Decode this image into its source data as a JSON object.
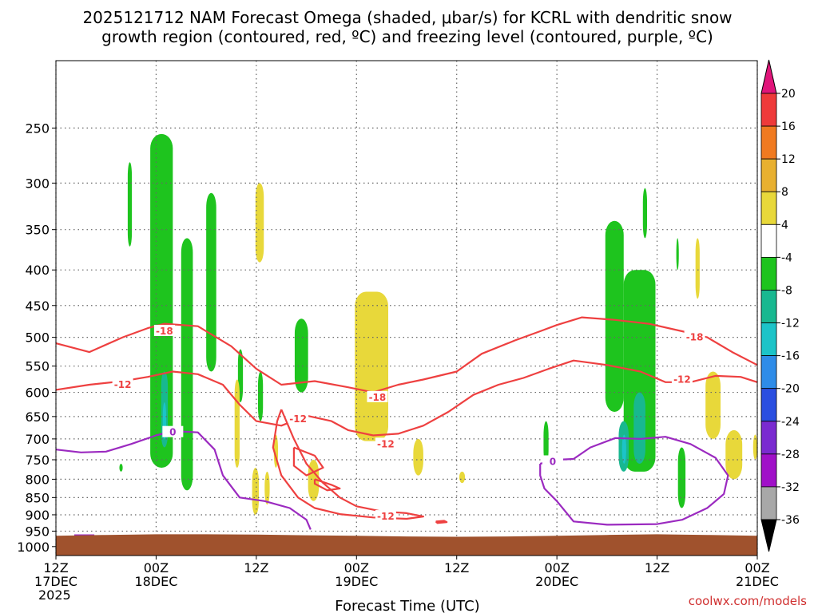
{
  "title_line1": "2025121712 NAM Forecast Omega (shaded, μbar/s) for KCRL with dendritic snow",
  "title_line2": "growth region (contoured, red, ºC) and freezing level (contoured, purple, ºC)",
  "credit": "coolwx.com/models",
  "chart_data": {
    "type": "heatmap",
    "title": "2025121712 NAM Forecast Omega (shaded, μbar/s) for KCRL with dendritic snow growth region (contoured, red, ºC) and freezing level (contoured, purple, ºC)",
    "xlabel": "Forecast Time (UTC)",
    "ylabel": "",
    "x_range_hours": [
      0,
      84
    ],
    "y_range_hPa": [
      200,
      1030
    ],
    "y_scale": "log",
    "grid": true,
    "y_ticks": [
      250,
      300,
      350,
      400,
      450,
      500,
      550,
      600,
      650,
      700,
      750,
      800,
      850,
      900,
      950,
      1000
    ],
    "x_ticks": [
      {
        "hour": 0,
        "lines": [
          "12Z",
          "17DEC",
          "2025"
        ]
      },
      {
        "hour": 12,
        "lines": [
          "00Z",
          "18DEC"
        ]
      },
      {
        "hour": 24,
        "lines": [
          "12Z"
        ]
      },
      {
        "hour": 36,
        "lines": [
          "00Z",
          "19DEC"
        ]
      },
      {
        "hour": 48,
        "lines": [
          "12Z"
        ]
      },
      {
        "hour": 60,
        "lines": [
          "00Z",
          "20DEC"
        ]
      },
      {
        "hour": 72,
        "lines": [
          "12Z"
        ]
      },
      {
        "hour": 84,
        "lines": [
          "00Z",
          "21DEC"
        ]
      }
    ],
    "colorbar": {
      "labels": [
        "20",
        "16",
        "12",
        "8",
        "4",
        "-4",
        "-8",
        "-12",
        "-16",
        "-20",
        "-24",
        "-28",
        "-32",
        "-36"
      ],
      "colors_top_to_bottom": [
        "#e0157a",
        "#ee3a3a",
        "#f07a20",
        "#e8b030",
        "#e8d83a",
        "#ffffff",
        "#1ec41e",
        "#18b890",
        "#1cc4c8",
        "#2e8ce8",
        "#2a4ee0",
        "#7a2ad0",
        "#a010c8",
        "#a8a8a8",
        "#000000"
      ]
    },
    "surface_color": "#a0522d",
    "omega_regions": [
      {
        "class": "-4to-8",
        "hours": [
          11.3,
          14.0
        ],
        "p": [
          255,
          770
        ],
        "color": "#1ec41e"
      },
      {
        "class": "-4to-8",
        "hours": [
          8.6,
          9.1
        ],
        "p": [
          280,
          370
        ],
        "color": "#1ec41e"
      },
      {
        "class": "-4to-8",
        "hours": [
          15.0,
          16.4
        ],
        "p": [
          360,
          830
        ],
        "color": "#1ec41e"
      },
      {
        "class": "-4to-8",
        "hours": [
          18.0,
          19.2
        ],
        "p": [
          310,
          560
        ],
        "color": "#1ec41e"
      },
      {
        "class": "-4to-8",
        "hours": [
          21.8,
          22.4
        ],
        "p": [
          520,
          620
        ],
        "color": "#1ec41e"
      },
      {
        "class": "-4to-8",
        "hours": [
          24.2,
          24.8
        ],
        "p": [
          560,
          660
        ],
        "color": "#1ec41e"
      },
      {
        "class": "-4to-8",
        "hours": [
          28.6,
          30.2
        ],
        "p": [
          470,
          600
        ],
        "color": "#1ec41e"
      },
      {
        "class": "-4to-8",
        "hours": [
          7.6,
          8.0
        ],
        "p": [
          760,
          780
        ],
        "color": "#1ec41e"
      },
      {
        "class": "-4to-8",
        "hours": [
          58.4,
          59.0
        ],
        "p": [
          660,
          760
        ],
        "color": "#1ec41e"
      },
      {
        "class": "-4to-8",
        "hours": [
          65.8,
          68.0
        ],
        "p": [
          340,
          640
        ],
        "color": "#1ec41e"
      },
      {
        "class": "-4to-8",
        "hours": [
          68.0,
          71.8
        ],
        "p": [
          400,
          780
        ],
        "color": "#1ec41e"
      },
      {
        "class": "-4to-8",
        "hours": [
          70.3,
          70.8
        ],
        "p": [
          305,
          360
        ],
        "color": "#1ec41e"
      },
      {
        "class": "-4to-8",
        "hours": [
          74.3,
          74.6
        ],
        "p": [
          360,
          400
        ],
        "color": "#1ec41e"
      },
      {
        "class": "-4to-8",
        "hours": [
          74.5,
          75.4
        ],
        "p": [
          720,
          880
        ],
        "color": "#1ec41e"
      },
      {
        "class": "-8to-12",
        "hours": [
          12.6,
          13.4
        ],
        "p": [
          560,
          720
        ],
        "color": "#18b890"
      },
      {
        "class": "-8to-12",
        "hours": [
          67.4,
          68.6
        ],
        "p": [
          660,
          780
        ],
        "color": "#18b890"
      },
      {
        "class": "-8to-12",
        "hours": [
          69.2,
          70.6
        ],
        "p": [
          600,
          760
        ],
        "color": "#18b890"
      },
      {
        "class": "-12to-16",
        "hours": [
          12.8,
          13.2
        ],
        "p": [
          620,
          700
        ],
        "color": "#1cc4c8"
      },
      {
        "class": "-12to-16",
        "hours": [
          67.8,
          68.3
        ],
        "p": [
          690,
          760
        ],
        "color": "#1cc4c8"
      },
      {
        "class": "4to8",
        "hours": [
          23.9,
          24.9
        ],
        "p": [
          300,
          390
        ],
        "color": "#e8d83a"
      },
      {
        "class": "4to8",
        "hours": [
          21.4,
          22.0
        ],
        "p": [
          575,
          770
        ],
        "color": "#e8d83a"
      },
      {
        "class": "4to8",
        "hours": [
          23.5,
          24.3
        ],
        "p": [
          770,
          900
        ],
        "color": "#e8d83a"
      },
      {
        "class": "4to8",
        "hours": [
          25.0,
          25.6
        ],
        "p": [
          780,
          870
        ],
        "color": "#e8d83a"
      },
      {
        "class": "4to8",
        "hours": [
          26.1,
          26.6
        ],
        "p": [
          690,
          770
        ],
        "color": "#e8d83a"
      },
      {
        "class": "4to8",
        "hours": [
          30.2,
          31.5
        ],
        "p": [
          750,
          860
        ],
        "color": "#e8d83a"
      },
      {
        "class": "4to8",
        "hours": [
          35.8,
          39.8
        ],
        "p": [
          430,
          705
        ],
        "color": "#e8d83a"
      },
      {
        "class": "4to8",
        "hours": [
          42.8,
          44.0
        ],
        "p": [
          700,
          790
        ],
        "color": "#e8d83a"
      },
      {
        "class": "4to8",
        "hours": [
          48.3,
          49.0
        ],
        "p": [
          780,
          810
        ],
        "color": "#e8d83a"
      },
      {
        "class": "4to8",
        "hours": [
          76.6,
          77.1
        ],
        "p": [
          360,
          440
        ],
        "color": "#e8d83a"
      },
      {
        "class": "4to8",
        "hours": [
          77.8,
          79.6
        ],
        "p": [
          560,
          700
        ],
        "color": "#e8d83a"
      },
      {
        "class": "4to8",
        "hours": [
          80.2,
          82.2
        ],
        "p": [
          680,
          800
        ],
        "color": "#e8d83a"
      },
      {
        "class": "4to8",
        "hours": [
          83.5,
          84.0
        ],
        "p": [
          690,
          750
        ],
        "color": "#e8d83a"
      }
    ],
    "contours": [
      {
        "label": "-18",
        "color": "#ee4040",
        "label_at": [
          13.0,
          490
        ],
        "points": [
          [
            0,
            510
          ],
          [
            4,
            525
          ],
          [
            8,
            500
          ],
          [
            11,
            485
          ],
          [
            13,
            478
          ],
          [
            17,
            482
          ],
          [
            21,
            515
          ],
          [
            24,
            555
          ],
          [
            27,
            585
          ],
          [
            31,
            578
          ],
          [
            35,
            590
          ],
          [
            38,
            600
          ],
          [
            41,
            585
          ],
          [
            44,
            575
          ],
          [
            48,
            560
          ],
          [
            51,
            528
          ],
          [
            55,
            505
          ],
          [
            58,
            490
          ],
          [
            60,
            480
          ],
          [
            63,
            468
          ],
          [
            67,
            472
          ],
          [
            71,
            478
          ],
          [
            75,
            490
          ],
          [
            78,
            500
          ],
          [
            81,
            525
          ],
          [
            84,
            548
          ]
        ]
      },
      {
        "label": "-18",
        "color": "#ee4040",
        "label_at": [
          76.5,
          500
        ],
        "points": []
      },
      {
        "label": "-18",
        "color": "#ee4040",
        "label_at": [
          38.5,
          610
        ],
        "points": []
      },
      {
        "label": "-12",
        "color": "#ee4040",
        "label_at": [
          8.0,
          585
        ],
        "points": [
          [
            0,
            595
          ],
          [
            4,
            585
          ],
          [
            8,
            578
          ],
          [
            11,
            570
          ],
          [
            14,
            560
          ],
          [
            17,
            565
          ],
          [
            20,
            585
          ],
          [
            22,
            625
          ],
          [
            24,
            660
          ],
          [
            27,
            670
          ],
          [
            30,
            648
          ],
          [
            33,
            660
          ],
          [
            35,
            680
          ],
          [
            38,
            692
          ],
          [
            41,
            688
          ],
          [
            44,
            670
          ],
          [
            47,
            640
          ],
          [
            50,
            605
          ],
          [
            53,
            585
          ],
          [
            56,
            572
          ],
          [
            59,
            555
          ],
          [
            62,
            540
          ],
          [
            66,
            548
          ],
          [
            70,
            560
          ],
          [
            73,
            580
          ],
          [
            76,
            580
          ],
          [
            79,
            568
          ],
          [
            82,
            570
          ],
          [
            84,
            580
          ]
        ]
      },
      {
        "label": "-12",
        "color": "#ee4040",
        "label_at": [
          29.0,
          655
        ],
        "points": []
      },
      {
        "label": "-12",
        "color": "#ee4040",
        "label_at": [
          39.5,
          712
        ],
        "points": []
      },
      {
        "label": "-12",
        "color": "#ee4040",
        "label_at": [
          75.0,
          575
        ],
        "points": []
      },
      {
        "label": "-12",
        "color": "#ee4040",
        "label_at": [
          39.5,
          905
        ],
        "points": [
          [
            27,
            635
          ],
          [
            28.5,
            700
          ],
          [
            30,
            760
          ],
          [
            32,
            810
          ],
          [
            34,
            850
          ],
          [
            36,
            875
          ],
          [
            39,
            890
          ],
          [
            42,
            895
          ],
          [
            44,
            905
          ],
          [
            42,
            912
          ],
          [
            38,
            908
          ],
          [
            34,
            898
          ],
          [
            31,
            880
          ],
          [
            29,
            850
          ],
          [
            27,
            790
          ],
          [
            26,
            720
          ],
          [
            26.5,
            660
          ],
          [
            27,
            635
          ]
        ]
      },
      {
        "label": "",
        "color": "#ee4040",
        "label_at": null,
        "points": [
          [
            31,
            800
          ],
          [
            33,
            815
          ],
          [
            34,
            825
          ],
          [
            32.5,
            830
          ],
          [
            31,
            812
          ],
          [
            31,
            800
          ]
        ]
      },
      {
        "label": "",
        "color": "#ee4040",
        "label_at": null,
        "points": [
          [
            28.5,
            720
          ],
          [
            31,
            740
          ],
          [
            32,
            770
          ],
          [
            30,
            790
          ],
          [
            28.5,
            765
          ],
          [
            28.5,
            720
          ]
        ]
      },
      {
        "label": "",
        "color": "#ee4040",
        "label_at": null,
        "points": [
          [
            45.5,
            920
          ],
          [
            46.5,
            918
          ],
          [
            46.8,
            922
          ],
          [
            45.7,
            925
          ],
          [
            45.5,
            920
          ]
        ]
      },
      {
        "label": "0",
        "color": "#9b2ac0",
        "label_at": [
          14.0,
          685
        ],
        "points": [
          [
            0,
            725
          ],
          [
            3,
            732
          ],
          [
            6,
            730
          ],
          [
            9,
            712
          ],
          [
            12,
            692
          ],
          [
            14,
            682
          ],
          [
            17,
            685
          ],
          [
            19,
            725
          ],
          [
            20,
            790
          ],
          [
            22,
            850
          ],
          [
            25,
            860
          ],
          [
            28,
            880
          ],
          [
            30,
            915
          ],
          [
            30.5,
            945
          ]
        ]
      },
      {
        "label": "0",
        "color": "#9b2ac0",
        "label_at": [
          59.5,
          755
        ],
        "points": [
          [
            58,
            760
          ],
          [
            60,
            750
          ],
          [
            62,
            748
          ],
          [
            64,
            720
          ],
          [
            67,
            698
          ],
          [
            70,
            700
          ],
          [
            73,
            695
          ],
          [
            76,
            712
          ],
          [
            79,
            745
          ],
          [
            80.5,
            790
          ],
          [
            80,
            840
          ],
          [
            78,
            880
          ],
          [
            75,
            915
          ],
          [
            72,
            928
          ],
          [
            66,
            930
          ],
          [
            62,
            920
          ],
          [
            60,
            860
          ],
          [
            58.5,
            825
          ],
          [
            58,
            790
          ],
          [
            58,
            760
          ]
        ]
      },
      {
        "label": "",
        "color": "#9b2ac0",
        "label_at": null,
        "points": [
          [
            2.2,
            963
          ],
          [
            4.6,
            963
          ]
        ]
      }
    ],
    "surface_pressure": [
      [
        0,
        965
      ],
      [
        6,
        962
      ],
      [
        12,
        960
      ],
      [
        18,
        960
      ],
      [
        24,
        961
      ],
      [
        30,
        963
      ],
      [
        36,
        965
      ],
      [
        42,
        967
      ],
      [
        48,
        968
      ],
      [
        54,
        967
      ],
      [
        60,
        965
      ],
      [
        66,
        962
      ],
      [
        72,
        960
      ],
      [
        78,
        962
      ],
      [
        84,
        965
      ]
    ]
  }
}
